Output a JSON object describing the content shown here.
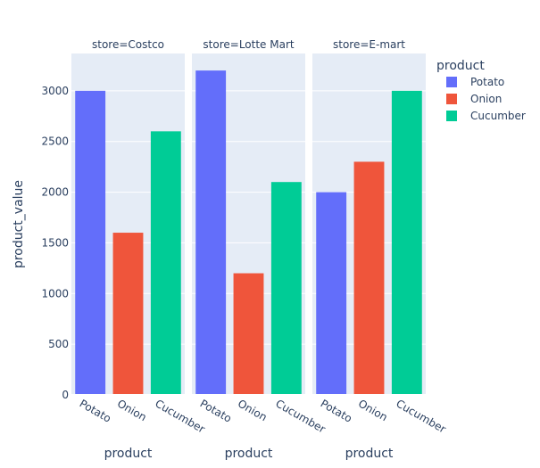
{
  "chart_data": {
    "type": "bar",
    "facet_label": "store",
    "facets": [
      {
        "name": "Costco",
        "title": "store=Costco",
        "xlabel": "product"
      },
      {
        "name": "Lotte Mart",
        "title": "store=Lotte Mart",
        "xlabel": "product"
      },
      {
        "name": "E-mart",
        "title": "store=E-mart",
        "xlabel": "product"
      }
    ],
    "categories": [
      "Potato",
      "Onion",
      "Cucumber"
    ],
    "series": [
      {
        "name": "Potato",
        "color": "#636efa",
        "values": [
          3000,
          3200,
          2000
        ]
      },
      {
        "name": "Onion",
        "color": "#ef553b",
        "values": [
          1600,
          1200,
          2300
        ]
      },
      {
        "name": "Cucumber",
        "color": "#00cc96",
        "values": [
          2600,
          2100,
          3000
        ]
      }
    ],
    "ylabel": "product_value",
    "ylim": [
      0,
      3368
    ],
    "yticks": [
      0,
      500,
      1000,
      1500,
      2000,
      2500,
      3000
    ],
    "grid": true,
    "legend": {
      "title": "product",
      "position": "top-right"
    },
    "plot_background": "#e5ecf6"
  }
}
